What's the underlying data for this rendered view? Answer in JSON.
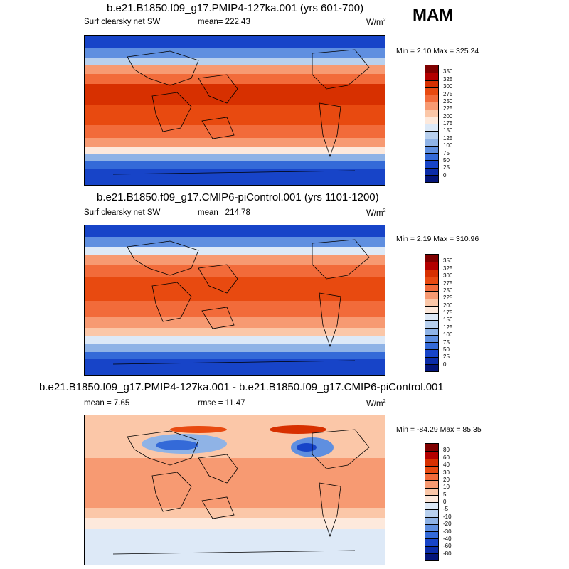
{
  "season": "MAM",
  "panels": [
    {
      "title": "b.e21.B1850.f09_g17.PMIP4-127ka.001 (yrs 601-700)",
      "left_label": "Surf clearsky net SW",
      "center_label": "mean= 222.43",
      "units": "W/m",
      "units_sup": "2",
      "minmax": "Min =   2.10 Max = 325.24",
      "colorbar": {
        "labels": [
          "350",
          "325",
          "300",
          "275",
          "250",
          "225",
          "200",
          "175",
          "150",
          "125",
          "100",
          "75",
          "50",
          "25",
          "0"
        ],
        "colors": [
          "#7f0000",
          "#b30000",
          "#d73000",
          "#e84a10",
          "#f26b3a",
          "#f79a72",
          "#fbc7a8",
          "#fde9dc",
          "#dde9f7",
          "#b8d0ee",
          "#8fb3e6",
          "#5f8fe0",
          "#346ad8",
          "#1744c8",
          "#0b2ca8",
          "#04157a"
        ]
      }
    },
    {
      "title": "b.e21.B1850.f09_g17.CMIP6-piControl.001 (yrs 1101-1200)",
      "left_label": "Surf clearsky net SW",
      "center_label": "mean= 214.78",
      "units": "W/m",
      "units_sup": "2",
      "minmax": "Min =   2.19 Max = 310.96",
      "colorbar": {
        "labels": [
          "350",
          "325",
          "300",
          "275",
          "250",
          "225",
          "200",
          "175",
          "150",
          "125",
          "100",
          "75",
          "50",
          "25",
          "0"
        ],
        "colors": [
          "#7f0000",
          "#b30000",
          "#d73000",
          "#e84a10",
          "#f26b3a",
          "#f79a72",
          "#fbc7a8",
          "#fde9dc",
          "#dde9f7",
          "#b8d0ee",
          "#8fb3e6",
          "#5f8fe0",
          "#346ad8",
          "#1744c8",
          "#0b2ca8",
          "#04157a"
        ]
      }
    },
    {
      "title": "b.e21.B1850.f09_g17.PMIP4-127ka.001 - b.e21.B1850.f09_g17.CMIP6-piControl.001",
      "left_label": "mean =   7.65",
      "center_label": "rmse =  11.47",
      "units": "W/m",
      "units_sup": "2",
      "minmax": "Min = -84.29 Max =  85.35",
      "colorbar": {
        "labels": [
          "80",
          "60",
          "40",
          "30",
          "20",
          "10",
          "5",
          "0",
          "-5",
          "-10",
          "-20",
          "-30",
          "-40",
          "-60",
          "-80"
        ],
        "colors": [
          "#7f0000",
          "#b30000",
          "#d73000",
          "#e84a10",
          "#f26b3a",
          "#f79a72",
          "#fbc7a8",
          "#fde9dc",
          "#dde9f7",
          "#b8d0ee",
          "#8fb3e6",
          "#5f8fe0",
          "#346ad8",
          "#1744c8",
          "#0b2ca8",
          "#04157a"
        ]
      }
    }
  ]
}
